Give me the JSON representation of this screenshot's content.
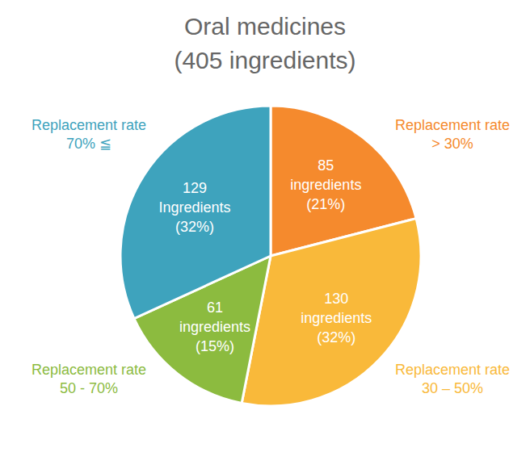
{
  "chart_data": {
    "type": "pie",
    "title": "Oral medicines",
    "subtitle": "(405 ingredients)",
    "categories": [
      "Replacement rate\n> 30%",
      "Replacement rate\n30 – 50%",
      "Replacement rate\n50 - 70%",
      "Replacement rate\n70% ≦"
    ],
    "values": [
      85,
      130,
      61,
      129
    ],
    "value_labels": [
      "85\ningredients\n(21%)",
      "130\ningredients\n(32%)",
      "61\ningredients\n(15%)",
      "129\nIngredients\n(32%)"
    ],
    "colors": [
      "#f58a2d",
      "#f9b93a",
      "#8cbb3f",
      "#3ea3bd"
    ],
    "data_labels": true
  }
}
